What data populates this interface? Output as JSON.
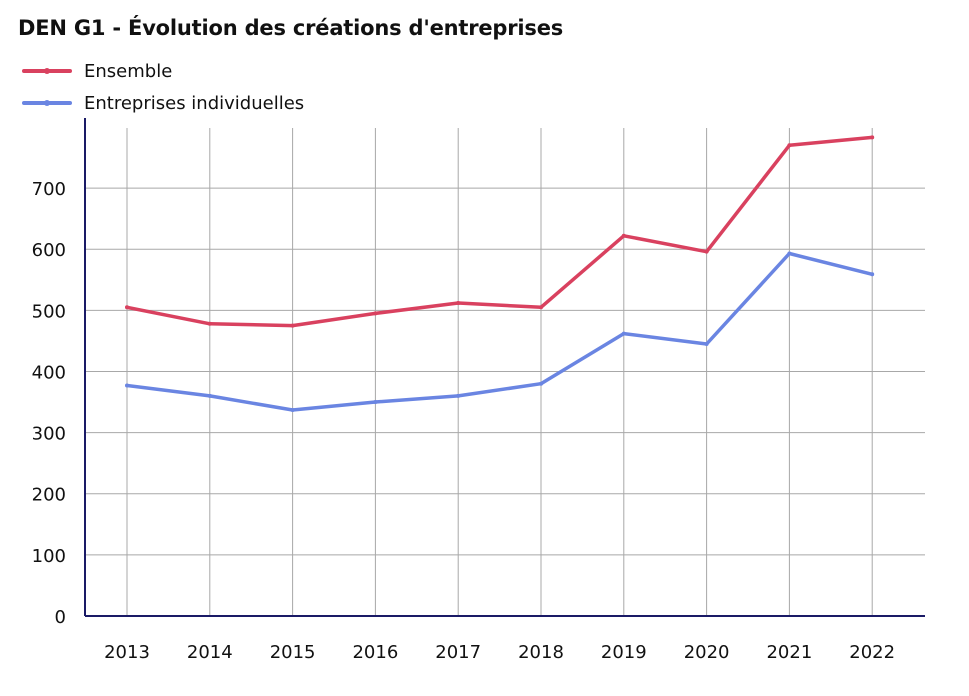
{
  "chart_data": {
    "type": "line",
    "title": "DEN G1 - Évolution des créations d'entreprises",
    "xlabel": "",
    "ylabel": "",
    "categories": [
      "2013",
      "2014",
      "2015",
      "2016",
      "2017",
      "2018",
      "2019",
      "2020",
      "2021",
      "2022"
    ],
    "ylim": [
      0,
      800
    ],
    "yticks": [
      0,
      100,
      200,
      300,
      400,
      500,
      600,
      700
    ],
    "grid": true,
    "legend_position": "top-left",
    "series": [
      {
        "name": "Ensemble",
        "color": "#d9415f",
        "values": [
          505,
          478,
          475,
          495,
          512,
          505,
          622,
          596,
          770,
          783
        ]
      },
      {
        "name": "Entreprises individuelles",
        "color": "#6a85e2",
        "values": [
          377,
          360,
          337,
          350,
          360,
          380,
          462,
          445,
          593,
          559
        ]
      }
    ]
  }
}
